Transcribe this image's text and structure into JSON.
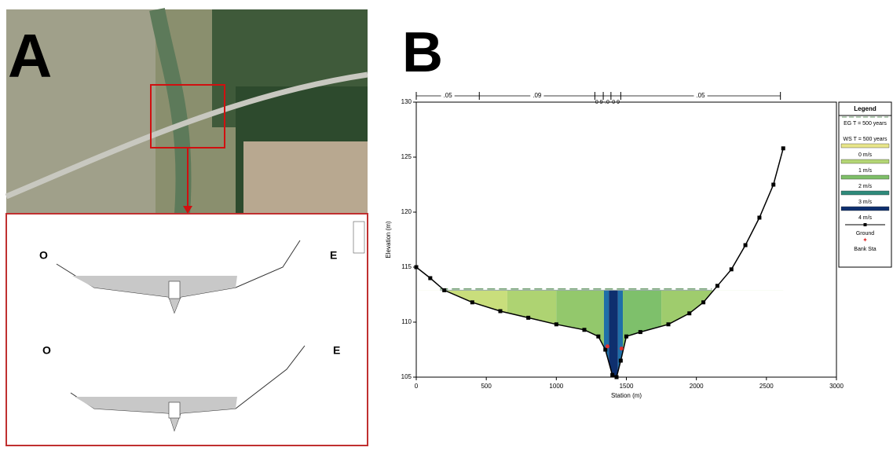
{
  "panel_a": {
    "label": "A",
    "sub_charts": [
      {
        "left": "O",
        "right": "E"
      },
      {
        "left": "O",
        "right": "E"
      }
    ]
  },
  "chart_data": {
    "type": "area",
    "label": "B",
    "xlabel": "Station (m)",
    "ylabel": "Elevation (m)",
    "xlim": [
      0,
      3000
    ],
    "xticks": [
      0,
      500,
      1000,
      1500,
      2000,
      2500,
      3000
    ],
    "ylim": [
      105,
      130
    ],
    "yticks": [
      105,
      110,
      115,
      120,
      125,
      130
    ],
    "ground": {
      "name": "Ground",
      "color": "#000000",
      "station": [
        0,
        100,
        200,
        400,
        600,
        800,
        1000,
        1200,
        1300,
        1350,
        1400,
        1430,
        1460,
        1500,
        1600,
        1800,
        1950,
        2050,
        2150,
        2250,
        2350,
        2450,
        2550,
        2620
      ],
      "elevation": [
        115,
        114,
        112.9,
        111.8,
        111,
        110.4,
        109.8,
        109.3,
        108.7,
        107.5,
        105.2,
        105,
        106.5,
        108.7,
        109.1,
        109.8,
        110.8,
        111.8,
        113.3,
        114.8,
        117,
        119.5,
        122.5,
        125.8
      ]
    },
    "ws": {
      "name": "WS T = 500 years",
      "value": 112.9,
      "from": 170,
      "to": 2110
    },
    "eg": {
      "name": "EG T = 500 years",
      "value": 112.95,
      "from": 170,
      "to": 2110,
      "color": "#6a9a6a"
    },
    "bank_sta": {
      "name": "Bank Sta",
      "color": "#e03030",
      "station": [
        1365,
        1465
      ],
      "elevation": [
        107.8,
        107.6
      ]
    },
    "flow_strips": [
      {
        "from": 0,
        "to": 650,
        "color": "#c9de7c"
      },
      {
        "from": 650,
        "to": 1000,
        "color": "#aed372"
      },
      {
        "from": 1000,
        "to": 1340,
        "color": "#93c86c"
      },
      {
        "from": 1340,
        "to": 1375,
        "color": "#1f6fa8"
      },
      {
        "from": 1375,
        "to": 1440,
        "color": "#0e2f6e"
      },
      {
        "from": 1440,
        "to": 1475,
        "color": "#1f6fa8"
      },
      {
        "from": 1475,
        "to": 1750,
        "color": "#7ec06b"
      },
      {
        "from": 1750,
        "to": 2700,
        "color": "#9fcc6d"
      }
    ],
    "manning": {
      "breaks": [
        0,
        450,
        1275,
        1335,
        1390,
        1460,
        2600
      ],
      "labels": [
        ".05",
        ".09",
        "0 9",
        ".0",
        "0 9",
        ".05"
      ]
    },
    "legend": {
      "title": "Legend",
      "items": [
        {
          "label": "EG T = 500 years",
          "style": "dashed",
          "color": "#6a9a6a"
        },
        {
          "label": "WS T = 500 years",
          "style": "band",
          "color": "#e8e68a"
        },
        {
          "label": "0 m/s",
          "style": "band",
          "color": "#b4d675"
        },
        {
          "label": "1 m/s",
          "style": "band",
          "color": "#7ebf68"
        },
        {
          "label": "2 m/s",
          "style": "band",
          "color": "#2e8a7a"
        },
        {
          "label": "3 m/s",
          "style": "band",
          "color": "#0e2f6e"
        },
        {
          "label": "4 m/s",
          "style": "marker",
          "color": "#000000"
        },
        {
          "label": "Ground",
          "style": "cross",
          "color": "#e03030"
        },
        {
          "label": "Bank Sta",
          "style": "none",
          "color": "#000000"
        }
      ]
    }
  }
}
